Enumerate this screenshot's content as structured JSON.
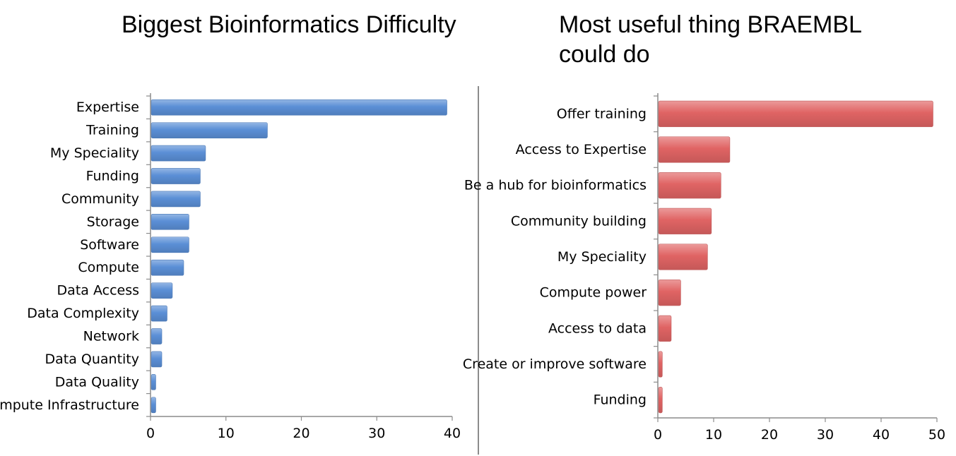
{
  "chart_data": [
    {
      "type": "bar",
      "orientation": "horizontal",
      "title": "Biggest Bioinformatics Difficulty",
      "categories": [
        "Expertise",
        "Training",
        "My Speciality",
        "Funding",
        "Community",
        "Storage",
        "Software",
        "Compute",
        "Data Access",
        "Data Complexity",
        "Network",
        "Data Quantity",
        "Data Quality",
        "Compute Infrastructure"
      ],
      "values": [
        39.3,
        15.5,
        7.3,
        6.6,
        6.6,
        5.1,
        5.1,
        4.4,
        2.9,
        2.2,
        1.5,
        1.5,
        0.7,
        0.7
      ],
      "xlim": [
        0,
        40
      ],
      "xticks": [
        "0",
        "10",
        "20",
        "30",
        "40"
      ],
      "color": "#5b8fd6",
      "grid": false
    },
    {
      "type": "bar",
      "orientation": "horizontal",
      "title": "Most useful thing BRAEMBL\ncould do",
      "categories": [
        "Offer training",
        "Access to Expertise",
        "Be a hub for bioinformatics",
        "Community building",
        "My Speciality",
        "Compute power",
        "Access to data",
        "Create or improve software",
        "Funding"
      ],
      "values": [
        49.3,
        12.9,
        11.3,
        9.6,
        8.9,
        4.1,
        2.4,
        0.8,
        0.8
      ],
      "xlim": [
        0,
        50
      ],
      "xticks": [
        "0",
        "10",
        "20",
        "30",
        "40",
        "50"
      ],
      "color": "#e06464",
      "grid": false
    }
  ]
}
